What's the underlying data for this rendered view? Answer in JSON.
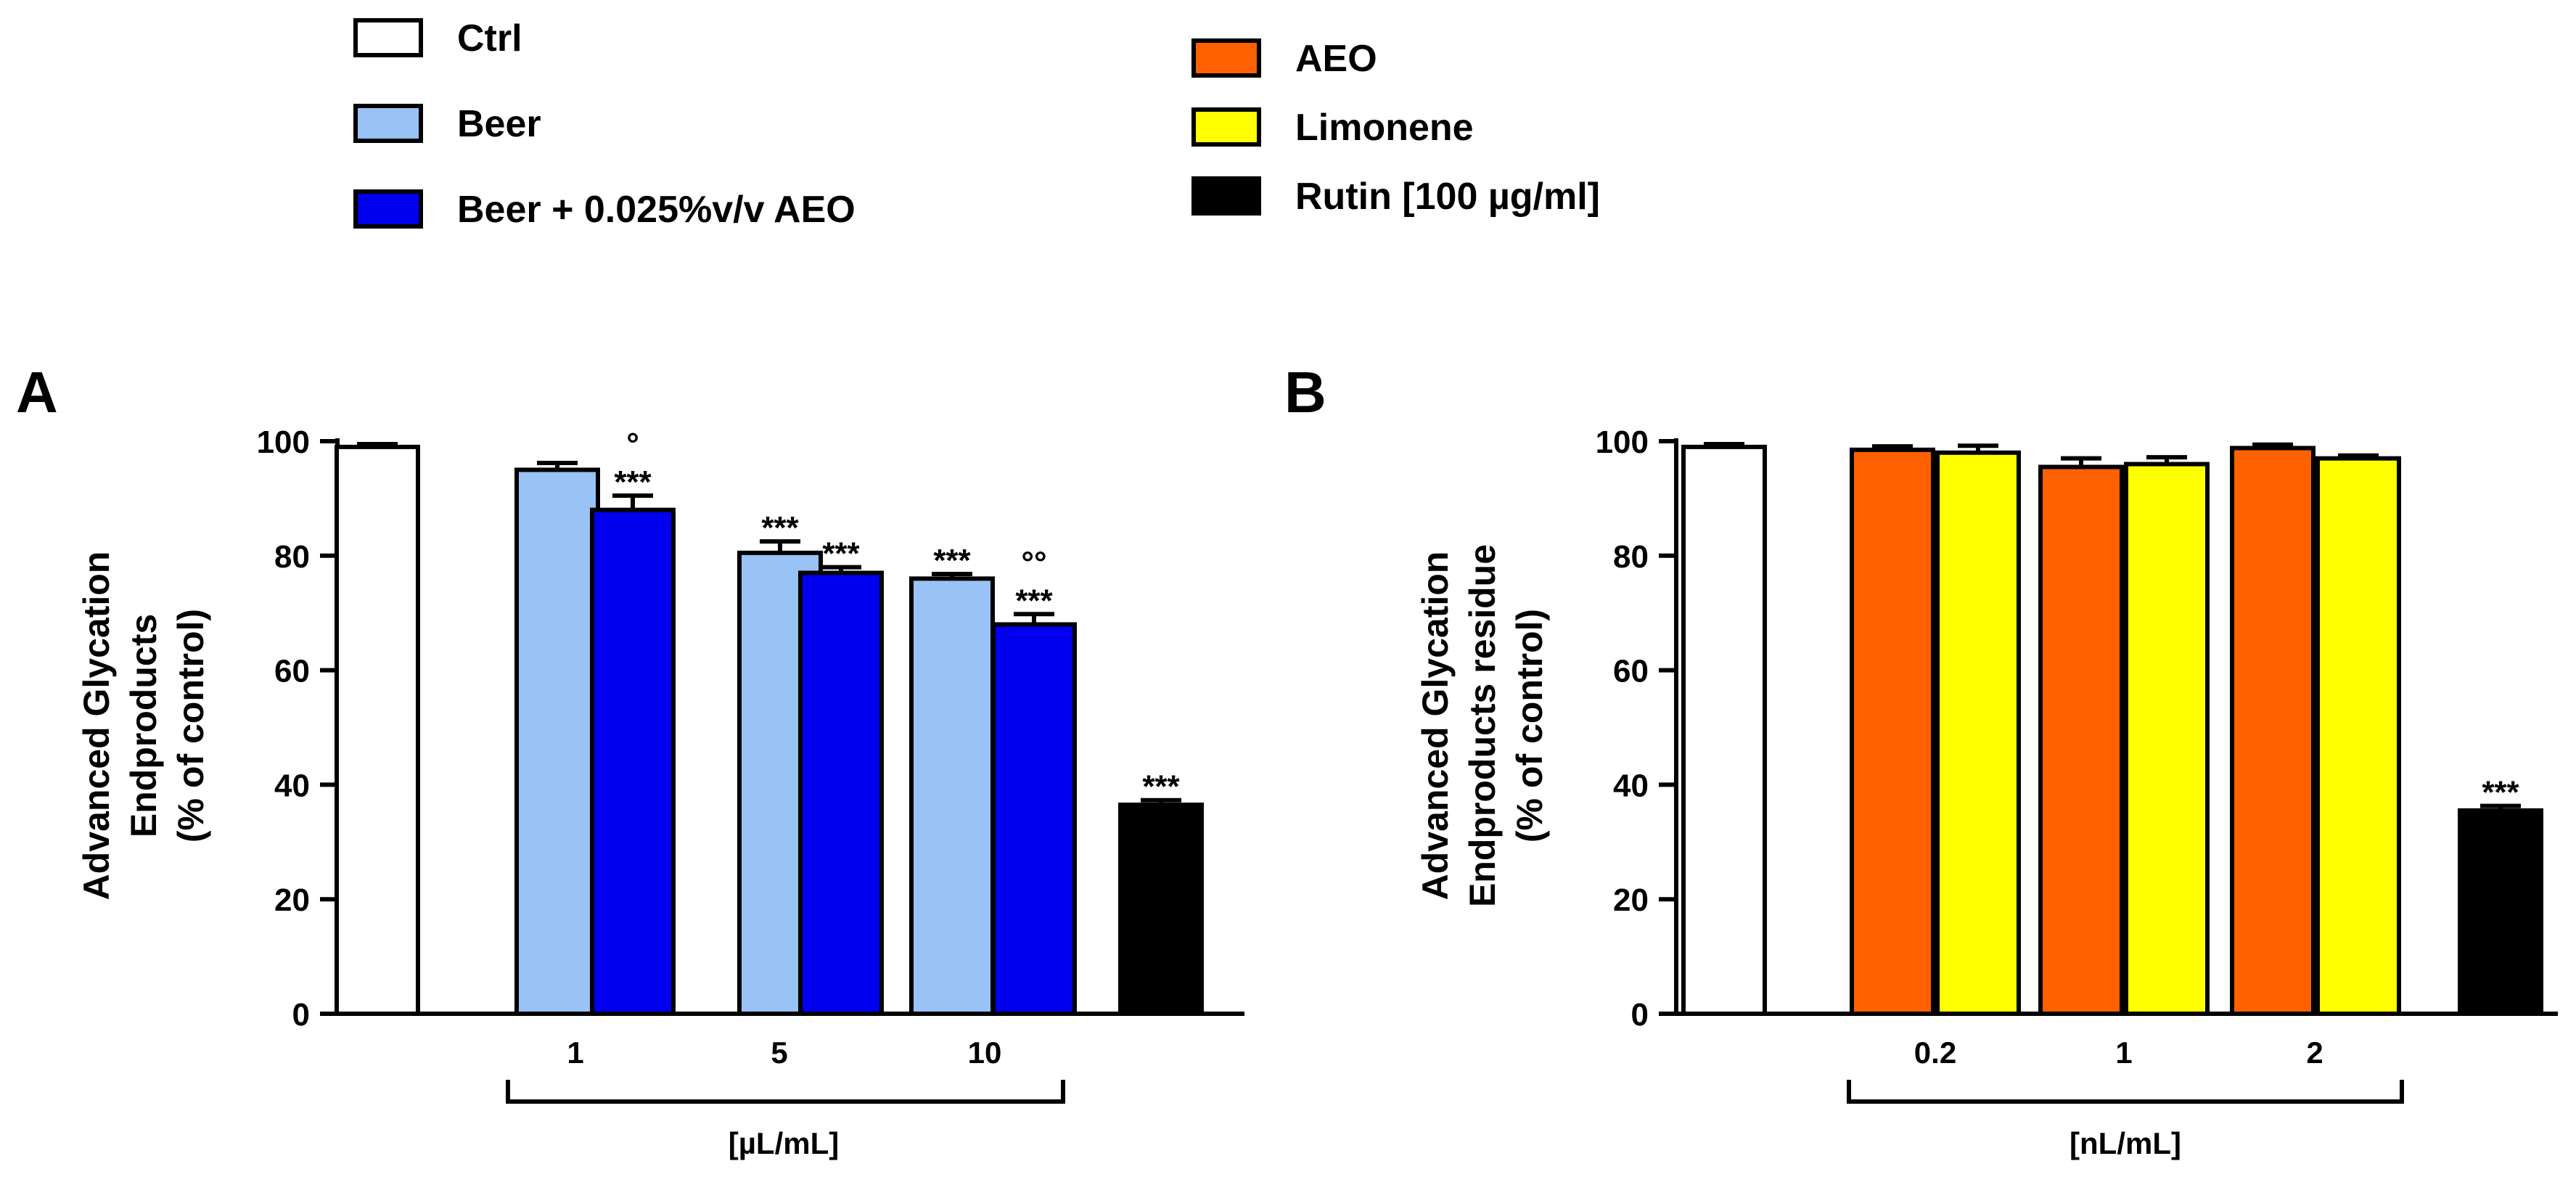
{
  "legend": [
    {
      "key": "ctrl",
      "label": "Ctrl",
      "color": "#ffffff"
    },
    {
      "key": "beer",
      "label": "Beer",
      "color": "#99c2f5"
    },
    {
      "key": "beer_aeo",
      "label": "Beer + 0.025%v/v AEO",
      "color": "#0000ee"
    },
    {
      "key": "aeo",
      "label": "AEO",
      "color": "#ff6000"
    },
    {
      "key": "limonene",
      "label": "Limonene",
      "color": "#ffff00"
    },
    {
      "key": "rutin",
      "label": "Rutin [100 µg/ml]",
      "color": "#000000"
    }
  ],
  "chart_data": [
    {
      "type": "bar",
      "panel": "A",
      "ylabel_lines": [
        "Advanced Glycation",
        "Endproducts",
        "(% of control)"
      ],
      "ylim": [
        0,
        100
      ],
      "yticks": [
        0,
        20,
        40,
        60,
        80,
        100
      ],
      "group_label": "[µL/mL]",
      "bars": [
        {
          "group": "",
          "series": "ctrl",
          "value": 99,
          "error": 0.5,
          "annotations": []
        },
        {
          "group": "1",
          "series": "beer",
          "value": 95,
          "error": 1.2,
          "annotations": []
        },
        {
          "group": "1",
          "series": "beer_aeo",
          "value": 88,
          "error": 2.5,
          "annotations": [
            "***",
            "°"
          ]
        },
        {
          "group": "5",
          "series": "beer",
          "value": 80.5,
          "error": 2.0,
          "annotations": [
            "***"
          ]
        },
        {
          "group": "5",
          "series": "beer_aeo",
          "value": 77,
          "error": 1.0,
          "annotations": [
            "***"
          ]
        },
        {
          "group": "10",
          "series": "beer",
          "value": 76,
          "error": 0.8,
          "annotations": [
            "***"
          ]
        },
        {
          "group": "10",
          "series": "beer_aeo",
          "value": 68,
          "error": 1.8,
          "annotations": [
            "***",
            "°°"
          ]
        },
        {
          "group": "",
          "series": "rutin",
          "value": 36.5,
          "error": 0.8,
          "annotations": [
            "***"
          ]
        }
      ],
      "group_ticks": [
        "1",
        "5",
        "10"
      ]
    },
    {
      "type": "bar",
      "panel": "B",
      "ylabel_lines": [
        "Advanced Glycation",
        "Endproducts residue",
        "(% of control)"
      ],
      "ylim": [
        0,
        100
      ],
      "yticks": [
        0,
        20,
        40,
        60,
        80,
        100
      ],
      "group_label": "[nL/mL]",
      "bars": [
        {
          "group": "",
          "series": "ctrl",
          "value": 99,
          "error": 0.5,
          "annotations": []
        },
        {
          "group": "0.2",
          "series": "aeo",
          "value": 98.5,
          "error": 0.6,
          "annotations": []
        },
        {
          "group": "0.2",
          "series": "limonene",
          "value": 98,
          "error": 1.2,
          "annotations": []
        },
        {
          "group": "1",
          "series": "aeo",
          "value": 95.5,
          "error": 1.5,
          "annotations": []
        },
        {
          "group": "1",
          "series": "limonene",
          "value": 96,
          "error": 1.2,
          "annotations": []
        },
        {
          "group": "2",
          "series": "aeo",
          "value": 98.8,
          "error": 0.6,
          "annotations": []
        },
        {
          "group": "2",
          "series": "limonene",
          "value": 97,
          "error": 0.5,
          "annotations": []
        },
        {
          "group": "",
          "series": "rutin",
          "value": 35.5,
          "error": 0.8,
          "annotations": [
            "***"
          ]
        }
      ],
      "group_ticks": [
        "0.2",
        "1",
        "2"
      ]
    }
  ]
}
